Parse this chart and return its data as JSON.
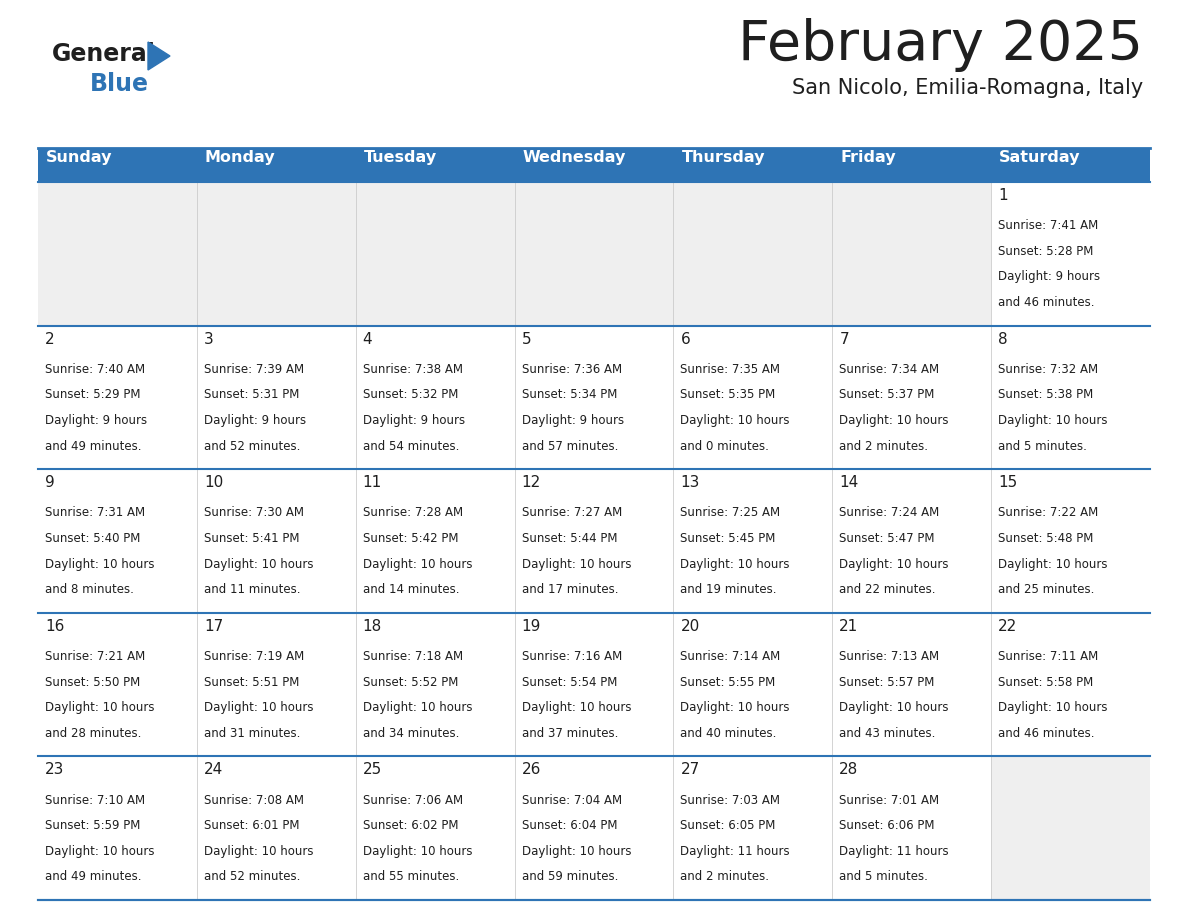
{
  "title": "February 2025",
  "subtitle": "San Nicolo, Emilia-Romagna, Italy",
  "days_of_week": [
    "Sunday",
    "Monday",
    "Tuesday",
    "Wednesday",
    "Thursday",
    "Friday",
    "Saturday"
  ],
  "header_bg": "#2E74B5",
  "header_text": "#FFFFFF",
  "empty_cell_bg": "#EFEFEF",
  "cell_bg": "#FFFFFF",
  "cell_text": "#1F1F1F",
  "separator_color": "#2E74B5",
  "title_color": "#1F1F1F",
  "subtitle_color": "#1F1F1F",
  "logo_general_color": "#1F1F1F",
  "logo_blue_color": "#2E74B5",
  "calendar_data": [
    {
      "day": 1,
      "col": 6,
      "row": 0,
      "sunrise": "7:41 AM",
      "sunset": "5:28 PM",
      "daylight_hours": 9,
      "daylight_minutes": 46
    },
    {
      "day": 2,
      "col": 0,
      "row": 1,
      "sunrise": "7:40 AM",
      "sunset": "5:29 PM",
      "daylight_hours": 9,
      "daylight_minutes": 49
    },
    {
      "day": 3,
      "col": 1,
      "row": 1,
      "sunrise": "7:39 AM",
      "sunset": "5:31 PM",
      "daylight_hours": 9,
      "daylight_minutes": 52
    },
    {
      "day": 4,
      "col": 2,
      "row": 1,
      "sunrise": "7:38 AM",
      "sunset": "5:32 PM",
      "daylight_hours": 9,
      "daylight_minutes": 54
    },
    {
      "day": 5,
      "col": 3,
      "row": 1,
      "sunrise": "7:36 AM",
      "sunset": "5:34 PM",
      "daylight_hours": 9,
      "daylight_minutes": 57
    },
    {
      "day": 6,
      "col": 4,
      "row": 1,
      "sunrise": "7:35 AM",
      "sunset": "5:35 PM",
      "daylight_hours": 10,
      "daylight_minutes": 0
    },
    {
      "day": 7,
      "col": 5,
      "row": 1,
      "sunrise": "7:34 AM",
      "sunset": "5:37 PM",
      "daylight_hours": 10,
      "daylight_minutes": 2
    },
    {
      "day": 8,
      "col": 6,
      "row": 1,
      "sunrise": "7:32 AM",
      "sunset": "5:38 PM",
      "daylight_hours": 10,
      "daylight_minutes": 5
    },
    {
      "day": 9,
      "col": 0,
      "row": 2,
      "sunrise": "7:31 AM",
      "sunset": "5:40 PM",
      "daylight_hours": 10,
      "daylight_minutes": 8
    },
    {
      "day": 10,
      "col": 1,
      "row": 2,
      "sunrise": "7:30 AM",
      "sunset": "5:41 PM",
      "daylight_hours": 10,
      "daylight_minutes": 11
    },
    {
      "day": 11,
      "col": 2,
      "row": 2,
      "sunrise": "7:28 AM",
      "sunset": "5:42 PM",
      "daylight_hours": 10,
      "daylight_minutes": 14
    },
    {
      "day": 12,
      "col": 3,
      "row": 2,
      "sunrise": "7:27 AM",
      "sunset": "5:44 PM",
      "daylight_hours": 10,
      "daylight_minutes": 17
    },
    {
      "day": 13,
      "col": 4,
      "row": 2,
      "sunrise": "7:25 AM",
      "sunset": "5:45 PM",
      "daylight_hours": 10,
      "daylight_minutes": 19
    },
    {
      "day": 14,
      "col": 5,
      "row": 2,
      "sunrise": "7:24 AM",
      "sunset": "5:47 PM",
      "daylight_hours": 10,
      "daylight_minutes": 22
    },
    {
      "day": 15,
      "col": 6,
      "row": 2,
      "sunrise": "7:22 AM",
      "sunset": "5:48 PM",
      "daylight_hours": 10,
      "daylight_minutes": 25
    },
    {
      "day": 16,
      "col": 0,
      "row": 3,
      "sunrise": "7:21 AM",
      "sunset": "5:50 PM",
      "daylight_hours": 10,
      "daylight_minutes": 28
    },
    {
      "day": 17,
      "col": 1,
      "row": 3,
      "sunrise": "7:19 AM",
      "sunset": "5:51 PM",
      "daylight_hours": 10,
      "daylight_minutes": 31
    },
    {
      "day": 18,
      "col": 2,
      "row": 3,
      "sunrise": "7:18 AM",
      "sunset": "5:52 PM",
      "daylight_hours": 10,
      "daylight_minutes": 34
    },
    {
      "day": 19,
      "col": 3,
      "row": 3,
      "sunrise": "7:16 AM",
      "sunset": "5:54 PM",
      "daylight_hours": 10,
      "daylight_minutes": 37
    },
    {
      "day": 20,
      "col": 4,
      "row": 3,
      "sunrise": "7:14 AM",
      "sunset": "5:55 PM",
      "daylight_hours": 10,
      "daylight_minutes": 40
    },
    {
      "day": 21,
      "col": 5,
      "row": 3,
      "sunrise": "7:13 AM",
      "sunset": "5:57 PM",
      "daylight_hours": 10,
      "daylight_minutes": 43
    },
    {
      "day": 22,
      "col": 6,
      "row": 3,
      "sunrise": "7:11 AM",
      "sunset": "5:58 PM",
      "daylight_hours": 10,
      "daylight_minutes": 46
    },
    {
      "day": 23,
      "col": 0,
      "row": 4,
      "sunrise": "7:10 AM",
      "sunset": "5:59 PM",
      "daylight_hours": 10,
      "daylight_minutes": 49
    },
    {
      "day": 24,
      "col": 1,
      "row": 4,
      "sunrise": "7:08 AM",
      "sunset": "6:01 PM",
      "daylight_hours": 10,
      "daylight_minutes": 52
    },
    {
      "day": 25,
      "col": 2,
      "row": 4,
      "sunrise": "7:06 AM",
      "sunset": "6:02 PM",
      "daylight_hours": 10,
      "daylight_minutes": 55
    },
    {
      "day": 26,
      "col": 3,
      "row": 4,
      "sunrise": "7:04 AM",
      "sunset": "6:04 PM",
      "daylight_hours": 10,
      "daylight_minutes": 59
    },
    {
      "day": 27,
      "col": 4,
      "row": 4,
      "sunrise": "7:03 AM",
      "sunset": "6:05 PM",
      "daylight_hours": 11,
      "daylight_minutes": 2
    },
    {
      "day": 28,
      "col": 5,
      "row": 4,
      "sunrise": "7:01 AM",
      "sunset": "6:06 PM",
      "daylight_hours": 11,
      "daylight_minutes": 5
    }
  ]
}
